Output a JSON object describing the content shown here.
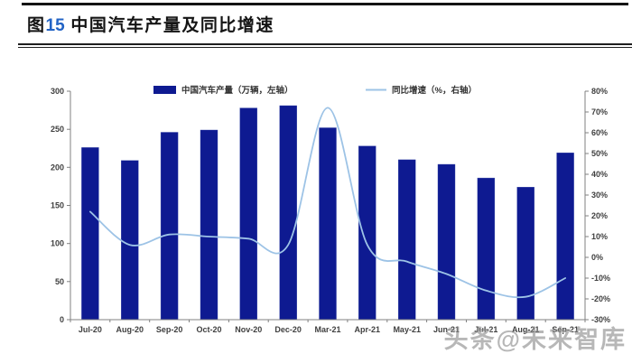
{
  "header": {
    "title_prefix": "图",
    "title_number": "15",
    "title_rest": " 中国汽车产量及同比增速"
  },
  "watermark": {
    "text": "头条@未来智库"
  },
  "chart_data": {
    "type": "bar+line",
    "title": "中国汽车产量及同比增速",
    "categories": [
      "Jul-20",
      "Aug-20",
      "Sep-20",
      "Oct-20",
      "Nov-20",
      "Dec-20",
      "Mar-21",
      "Apr-21",
      "May-21",
      "Jun-21",
      "Jul-21",
      "Aug-21",
      "Sep-21"
    ],
    "series": [
      {
        "name": "中国汽车产量（万辆，左轴）",
        "type": "bar",
        "axis": "left",
        "color": "#0e1a91",
        "values": [
          226,
          209,
          246,
          249,
          278,
          281,
          252,
          228,
          210,
          204,
          186,
          174,
          219
        ]
      },
      {
        "name": "同比增速（%，右轴）",
        "type": "line",
        "axis": "right",
        "color": "#9dc3e6",
        "values": [
          22,
          6,
          11,
          10,
          9,
          6,
          72,
          6,
          -2,
          -8,
          -16,
          -19,
          -10
        ]
      }
    ],
    "left_axis": {
      "min": 0,
      "max": 300,
      "step": 50,
      "labels": [
        "0",
        "50",
        "100",
        "150",
        "200",
        "250",
        "300"
      ]
    },
    "right_axis": {
      "min": -30,
      "max": 80,
      "step": 10,
      "labels": [
        "-30%",
        "-20%",
        "-10%",
        "0%",
        "10%",
        "20%",
        "30%",
        "40%",
        "50%",
        "60%",
        "70%",
        "80%"
      ]
    },
    "legend_position": "top",
    "grid": false,
    "axis_color": "#808080"
  }
}
